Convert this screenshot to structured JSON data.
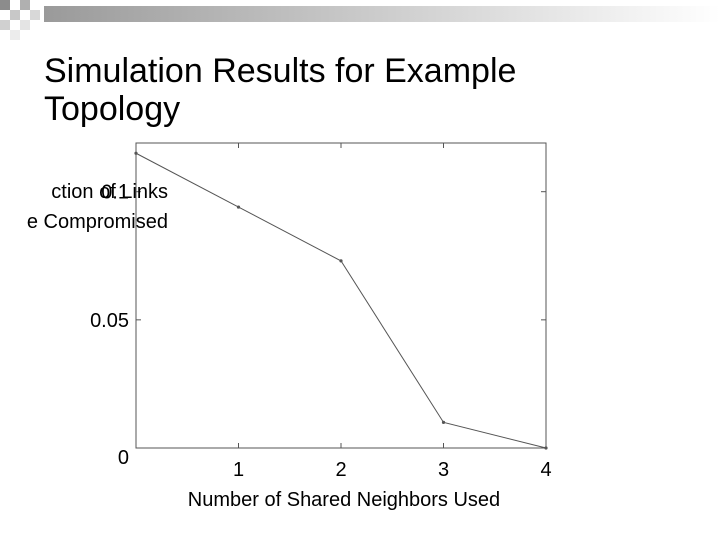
{
  "chart_data": {
    "type": "line",
    "title": "Simulation Results for Example Topology",
    "ylabel": [
      "ction of Links",
      "e Compromised"
    ],
    "xlabel": "Number of Shared Neighbors Used",
    "x": [
      0,
      1,
      2,
      3,
      4
    ],
    "values": [
      0.115,
      0.094,
      0.073,
      0.01,
      0
    ],
    "color": "#555555",
    "xlim": [
      0,
      4
    ],
    "xticks": [
      1,
      2,
      3,
      4
    ],
    "ylim": [
      0,
      0.119
    ],
    "yticks": [
      0,
      0.05,
      0.1
    ],
    "grid": false
  }
}
